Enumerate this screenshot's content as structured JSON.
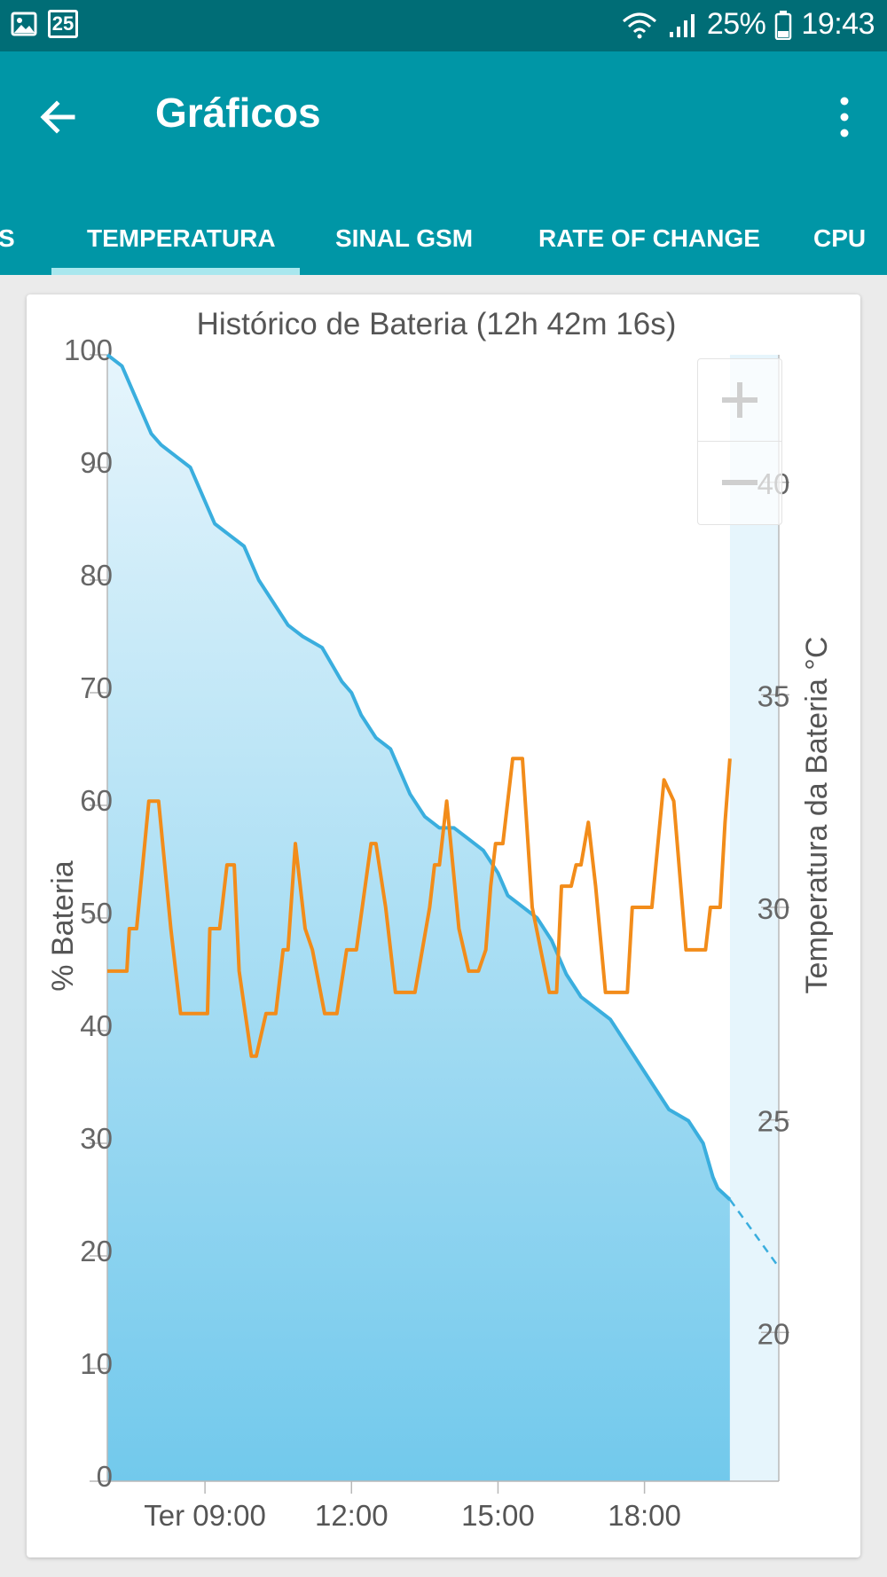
{
  "status_bar": {
    "date_badge": "25",
    "battery": "25%",
    "time": "19:43",
    "icons": [
      "gallery-icon",
      "calendar-icon",
      "wifi-icon",
      "signal-icon",
      "battery-icon"
    ]
  },
  "app_bar": {
    "title": "Gráficos",
    "back_icon": "arrow-back-icon",
    "menu_icon": "more-vert-icon"
  },
  "tabs": [
    {
      "label": "S",
      "active": false
    },
    {
      "label": "TEMPERATURA",
      "active": true
    },
    {
      "label": "SINAL GSM",
      "active": false
    },
    {
      "label": "RATE OF CHANGE",
      "active": false
    },
    {
      "label": "CPU",
      "active": false
    }
  ],
  "colors": {
    "status_bar": "#006d76",
    "app_bar": "#0096a6",
    "battery_line": "#3aaede",
    "temperature_line": "#f28c1a",
    "tab_indicator": "#a9e7ee"
  },
  "zoom": {
    "in_icon": "plus-icon",
    "out_icon": "minus-icon"
  },
  "chart_data": {
    "type": "line",
    "title": "Histórico de Bateria (12h 42m 16s)",
    "ylabel": "% Bateria",
    "y2label": "Temperatura da Bateria °C",
    "xlim": [
      7.0,
      20.75
    ],
    "ylim": [
      0,
      100
    ],
    "y2lim": [
      16.5,
      43
    ],
    "x_ticks": [
      9,
      12,
      15,
      18
    ],
    "x_tick_labels": [
      "Ter 09:00",
      "12:00",
      "15:00",
      "18:00"
    ],
    "y_ticks": [
      100,
      90,
      80,
      70,
      60,
      50,
      40,
      30,
      20,
      10,
      0
    ],
    "y2_ticks": [
      40,
      35,
      30,
      25,
      20
    ],
    "grid": false,
    "series": [
      {
        "axis": "left",
        "fill": true,
        "x": [
          7.0,
          7.3,
          7.6,
          7.9,
          8.1,
          8.4,
          8.7,
          8.9,
          9.2,
          9.5,
          9.8,
          10.1,
          10.4,
          10.7,
          11.0,
          11.4,
          11.8,
          12.0,
          12.2,
          12.5,
          12.8,
          13.0,
          13.2,
          13.5,
          13.8,
          14.1,
          14.4,
          14.7,
          15.0,
          15.2,
          15.5,
          15.8,
          16.1,
          16.4,
          16.7,
          17.0,
          17.3,
          17.6,
          17.9,
          18.2,
          18.5,
          18.9,
          19.2,
          19.4,
          19.5,
          19.75
        ],
        "values": [
          100,
          99,
          96,
          93,
          92,
          91,
          90,
          88,
          85,
          84,
          83,
          80,
          78,
          76,
          75,
          74,
          71,
          70,
          68,
          66,
          65,
          63,
          61,
          59,
          58,
          58,
          57,
          56,
          54,
          52,
          51,
          50,
          48,
          45,
          43,
          42,
          41,
          39,
          37,
          35,
          33,
          32,
          30,
          27,
          26,
          25
        ]
      },
      {
        "axis": "left",
        "dashed": true,
        "x": [
          19.75,
          20.75
        ],
        "values": [
          25,
          19
        ]
      },
      {
        "axis": "right",
        "x": [
          7.0,
          7.4,
          7.45,
          7.6,
          7.85,
          8.05,
          8.3,
          8.5,
          9.05,
          9.1,
          9.3,
          9.45,
          9.6,
          9.7,
          9.95,
          10.05,
          10.25,
          10.45,
          10.6,
          10.7,
          10.85,
          11.05,
          11.2,
          11.45,
          11.7,
          11.9,
          12.0,
          12.1,
          12.4,
          12.5,
          12.7,
          12.9,
          13.1,
          13.3,
          13.6,
          13.7,
          13.8,
          13.95,
          14.2,
          14.4,
          14.6,
          14.75,
          14.85,
          14.95,
          15.1,
          15.3,
          15.5,
          15.7,
          16.05,
          16.2,
          16.3,
          16.5,
          16.6,
          16.7,
          16.85,
          17.0,
          17.2,
          17.4,
          17.65,
          17.75,
          17.95,
          18.15,
          18.4,
          18.6,
          18.85,
          19.25,
          19.35,
          19.55,
          19.65,
          19.75
        ],
        "values": [
          28.5,
          28.5,
          29.5,
          29.5,
          32.5,
          32.5,
          29.5,
          27.5,
          27.5,
          29.5,
          29.5,
          31,
          31,
          28.5,
          26.5,
          26.5,
          27.5,
          27.5,
          29,
          29,
          31.5,
          29.5,
          29,
          27.5,
          27.5,
          29,
          29,
          29,
          31.5,
          31.5,
          30,
          28,
          28,
          28,
          30,
          31,
          31,
          32.5,
          29.5,
          28.5,
          28.5,
          29,
          30.5,
          31.5,
          31.5,
          33.5,
          33.5,
          30,
          28,
          28,
          30.5,
          30.5,
          31,
          31,
          32,
          30.5,
          28,
          28,
          28,
          30,
          30,
          30,
          33,
          32.5,
          29,
          29,
          30,
          30,
          32,
          33.5
        ]
      }
    ]
  }
}
